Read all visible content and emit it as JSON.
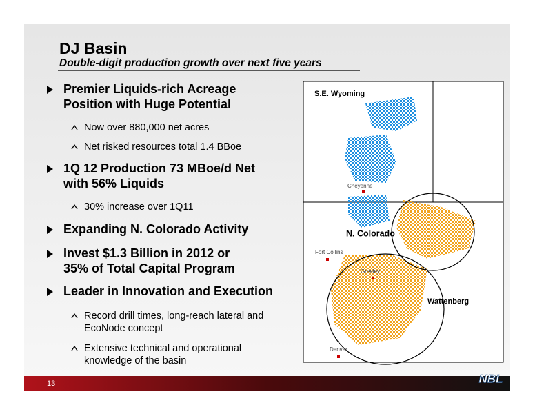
{
  "header": {
    "title": "DJ Basin",
    "subtitle": "Double-digit production growth over next five years"
  },
  "bullets": [
    {
      "lines": [
        "Premier Liquids-rich Acreage",
        "Position with Huge Potential"
      ],
      "subs": [
        {
          "lines": [
            "Now over 880,000 net acres"
          ]
        },
        {
          "lines": [
            "Net risked resources total 1.4 BBoe"
          ]
        }
      ]
    },
    {
      "lines": [
        "1Q 12 Production 73 MBoe/d Net",
        "with 56% Liquids"
      ],
      "subs": [
        {
          "lines": [
            "30% increase over 1Q11"
          ]
        }
      ]
    },
    {
      "lines": [
        "Expanding N. Colorado Activity"
      ],
      "subs": []
    },
    {
      "lines": [
        "Invest $1.3 Billion in 2012 or",
        "35% of Total Capital Program"
      ],
      "subs": []
    },
    {
      "lines": [
        "Leader in Innovation and Execution"
      ],
      "subs": [
        {
          "lines": [
            "Record drill times, long-reach lateral and",
            "EcoNode concept"
          ]
        },
        {
          "lines": [
            "Extensive technical and operational",
            "knowledge of the basin"
          ]
        }
      ]
    }
  ],
  "map": {
    "regions": [
      "S.E. Wyoming",
      "N. Colorado",
      "Wattenberg"
    ],
    "cities": [
      "Cheyenne",
      "Fort Collins",
      "Greeley",
      "Denver"
    ]
  },
  "footer": {
    "page": "13",
    "logo": "NBL"
  }
}
